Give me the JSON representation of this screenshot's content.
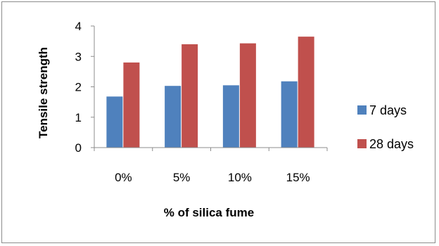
{
  "chart_data": {
    "type": "bar",
    "categories": [
      "0%",
      "5%",
      "10%",
      "15%"
    ],
    "series": [
      {
        "name": "7 days",
        "values": [
          1.68,
          2.03,
          2.05,
          2.18
        ],
        "color": "#4f81bd"
      },
      {
        "name": "28 days",
        "values": [
          2.8,
          3.4,
          3.43,
          3.65
        ],
        "color": "#c0504d"
      }
    ],
    "title": "",
    "xlabel": "% of silica fume",
    "ylabel": "Tensile strength",
    "ylim": [
      0,
      4
    ],
    "yticks": [
      "0",
      "1",
      "2",
      "3",
      "4"
    ],
    "grid": false,
    "legend_position": "right"
  }
}
